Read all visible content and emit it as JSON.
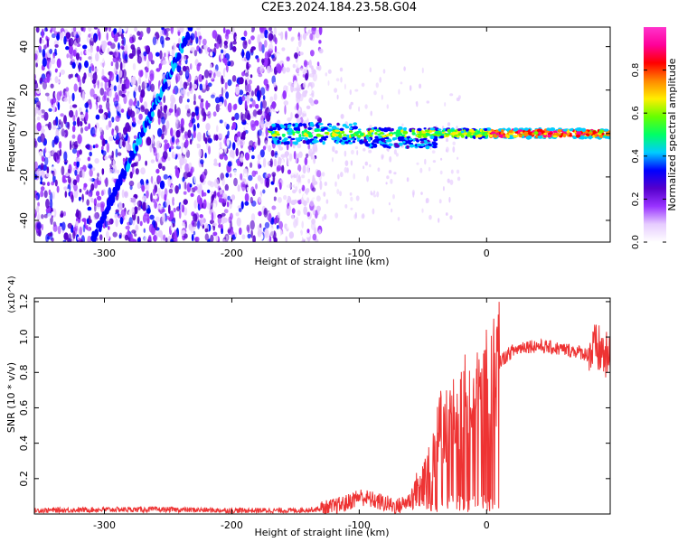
{
  "figure": {
    "title": "C2E3.2024.184.23.58.G04"
  },
  "chart_data": [
    {
      "type": "heatmap",
      "title": "",
      "xlabel": "Height of straight line (km)",
      "ylabel": "Frequency (Hz)",
      "xlim": [
        -355,
        97
      ],
      "ylim": [
        -50,
        49
      ],
      "x_ticks": [
        -300,
        -200,
        -100,
        0
      ],
      "y_ticks": [
        -40,
        -20,
        0,
        20,
        40
      ],
      "colorbar": {
        "label": "Normalized spectral amplitude",
        "range": [
          0,
          1
        ],
        "ticks": [
          0.0,
          0.2,
          0.4,
          0.6,
          0.8
        ],
        "colors": [
          "#ffffff",
          "#e6ccff",
          "#9933ff",
          "#5500cc",
          "#0000ff",
          "#00ccff",
          "#00ff66",
          "#66ff00",
          "#ffee00",
          "#ff8800",
          "#ff0000",
          "#ff0099",
          "#ff33cc"
        ]
      },
      "features": [
        {
          "kind": "noise-field",
          "x_range": [
            -355,
            -130
          ],
          "y_range": [
            -50,
            49
          ],
          "amplitude": 0.2
        },
        {
          "kind": "streak",
          "x_range": [
            -310,
            -232
          ],
          "y_range": [
            -50,
            49
          ],
          "amplitude": 0.3
        },
        {
          "kind": "carrier",
          "x_range": [
            -170,
            97
          ],
          "frequency": 0,
          "amplitude": 0.7
        }
      ]
    },
    {
      "type": "line",
      "title": "",
      "xlabel": "Height of straight line (km)",
      "ylabel": "SNR (10 * v/v)",
      "scale_note": "(x10^4)",
      "xlim": [
        -355,
        97
      ],
      "ylim": [
        0,
        1.22
      ],
      "x_ticks": [
        -300,
        -200,
        -100,
        0
      ],
      "y_ticks": [
        0.2,
        0.4,
        0.6,
        0.8,
        1.0,
        1.2
      ],
      "line_color": "#ee3333",
      "series": [
        {
          "name": "",
          "x": [
            -355,
            -300,
            -250,
            -200,
            -150,
            -125,
            -110,
            -100,
            -90,
            -80,
            -70,
            -60,
            -50,
            -45,
            -40,
            -35,
            -30,
            -25,
            -20,
            -15,
            -10,
            -5,
            0,
            5,
            10,
            20,
            30,
            40,
            50,
            60,
            70,
            80,
            85,
            90,
            97
          ],
          "y": [
            0.02,
            0.025,
            0.025,
            0.02,
            0.02,
            0.03,
            0.06,
            0.1,
            0.08,
            0.06,
            0.04,
            0.08,
            0.2,
            0.3,
            0.4,
            0.5,
            0.5,
            0.55,
            0.6,
            0.65,
            0.68,
            0.7,
            0.74,
            0.8,
            0.86,
            0.92,
            0.95,
            0.95,
            0.94,
            0.93,
            0.92,
            0.9,
            0.93,
            0.92,
            0.85
          ]
        }
      ]
    }
  ]
}
